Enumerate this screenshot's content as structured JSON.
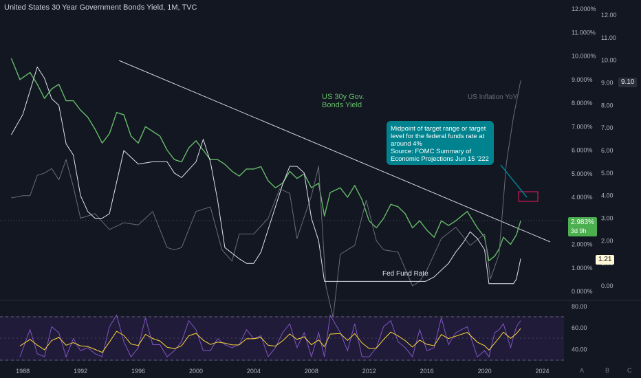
{
  "title": "United States 30 Year Government Bonds Yield, 1M, TVC",
  "main_axis": {
    "ticks": [
      "12.000%",
      "11.000%",
      "10.000%",
      "9.000%",
      "8.000%",
      "7.000%",
      "6.000%",
      "5.000%",
      "4.000%",
      "3.000%",
      "2.000%",
      "1.000%",
      "0.000%"
    ]
  },
  "second_axis": {
    "ticks": [
      "12.00",
      "11.00",
      "10.00",
      "9.00",
      "8.00",
      "7.00",
      "6.00",
      "5.00",
      "4.00",
      "3.00",
      "2.00",
      "1.00",
      "0.00"
    ]
  },
  "rsi_axis": {
    "ticks": [
      "80.00",
      "60.00",
      "40.00"
    ]
  },
  "x_axis": {
    "ticks": [
      "1988",
      "1992",
      "1996",
      "2000",
      "2004",
      "2008",
      "2012",
      "2016",
      "2020",
      "2024"
    ]
  },
  "price_badge": {
    "value": "2.983%",
    "countdown": "3d 9h",
    "color": "#4caf50"
  },
  "inflation_badge": {
    "value": "9.10"
  },
  "fed_badge": {
    "value": "1.21"
  },
  "labels": {
    "bonds": [
      "US 30y Gov.",
      "Bonds Yield"
    ],
    "inflation": "US Inflation YoY",
    "fed": "Fed Fund Rate"
  },
  "callout": {
    "lines": [
      "Midpoint of target range or target",
      "level for the federal funds rate at",
      "around 4%",
      "Source: FOMC Summary of",
      "Economic Projections Jun 15 '222"
    ],
    "color": "#00838f"
  },
  "scale_buttons": [
    "A",
    "B",
    "C"
  ],
  "chart_data": {
    "type": "line",
    "series": [
      {
        "name": "US 30y Gov. Bonds Yield",
        "color": "#66bb6a",
        "x": [
          1987.2,
          1987.8,
          1988.5,
          1989.0,
          1989.5,
          1990.0,
          1990.5,
          1991.0,
          1991.5,
          1992.0,
          1992.5,
          1993.0,
          1993.5,
          1994.0,
          1994.5,
          1995.0,
          1995.5,
          1996.0,
          1996.5,
          1997.0,
          1997.5,
          1998.0,
          1998.5,
          1999.0,
          1999.5,
          2000.0,
          2000.5,
          2001.0,
          2001.5,
          2002.0,
          2002.5,
          2003.0,
          2003.5,
          2004.0,
          2004.5,
          2005.0,
          2005.5,
          2006.0,
          2006.5,
          2007.0,
          2007.5,
          2008.0,
          2008.5,
          2008.9,
          2009.3,
          2010.0,
          2010.5,
          2011.0,
          2011.5,
          2012.0,
          2012.5,
          2013.0,
          2013.5,
          2014.0,
          2014.5,
          2015.0,
          2015.5,
          2016.0,
          2016.5,
          2017.0,
          2017.5,
          2018.0,
          2018.8,
          2019.5,
          2020.0,
          2020.3,
          2020.7,
          2021.0,
          2021.3,
          2021.8,
          2022.2,
          2022.5
        ],
        "y": [
          9.9,
          9.0,
          9.3,
          8.8,
          8.2,
          8.6,
          8.8,
          8.1,
          8.1,
          7.7,
          7.4,
          6.9,
          6.3,
          6.7,
          7.6,
          7.5,
          6.6,
          6.3,
          7.0,
          6.8,
          6.6,
          6.0,
          5.6,
          5.5,
          6.1,
          6.4,
          6.0,
          5.6,
          5.6,
          5.4,
          5.1,
          4.9,
          5.2,
          5.2,
          5.3,
          4.7,
          4.4,
          4.6,
          5.1,
          4.8,
          5.0,
          4.4,
          4.6,
          3.2,
          4.2,
          4.4,
          4.0,
          4.5,
          3.9,
          3.0,
          2.7,
          3.1,
          3.7,
          3.6,
          3.3,
          2.7,
          3.0,
          2.6,
          2.3,
          3.0,
          2.8,
          3.0,
          3.4,
          2.7,
          2.3,
          1.3,
          1.5,
          1.8,
          2.3,
          2.0,
          2.4,
          3.0
        ]
      },
      {
        "name": "US Inflation YoY",
        "x": [
          1987.2,
          1988.0,
          1988.5,
          1989.0,
          1989.5,
          1990.0,
          1990.5,
          1991.0,
          1991.5,
          1992.0,
          1993.0,
          1994.0,
          1995.0,
          1996.0,
          1997.0,
          1998.0,
          1998.5,
          1999.0,
          2000.0,
          2001.0,
          2001.8,
          2002.5,
          2003.0,
          2004.0,
          2005.0,
          2005.8,
          2006.5,
          2007.0,
          2008.0,
          2008.5,
          2009.0,
          2009.5,
          2010.0,
          2011.0,
          2011.8,
          2012.5,
          2013.0,
          2014.0,
          2015.0,
          2015.5,
          2016.0,
          2017.0,
          2018.0,
          2019.0,
          2020.0,
          2020.4,
          2021.0,
          2021.5,
          2022.0,
          2022.5
        ],
        "y": [
          3.9,
          4.0,
          4.0,
          4.9,
          5.0,
          5.2,
          4.7,
          5.6,
          4.4,
          3.0,
          3.2,
          2.5,
          2.8,
          2.7,
          3.3,
          1.7,
          1.6,
          1.7,
          3.3,
          3.5,
          1.6,
          1.1,
          2.3,
          2.3,
          3.0,
          4.3,
          4.1,
          2.1,
          4.0,
          5.3,
          0.0,
          -1.4,
          1.4,
          1.8,
          3.8,
          2.0,
          1.6,
          1.5,
          0.0,
          0.2,
          0.7,
          2.1,
          2.6,
          1.8,
          2.3,
          0.3,
          1.4,
          5.4,
          7.5,
          9.1
        ]
      },
      {
        "name": "Fed Fund Rate",
        "x": [
          1987.2,
          1988.0,
          1989.0,
          1989.5,
          1990.0,
          1990.5,
          1991.0,
          1991.5,
          1992.0,
          1992.5,
          1993.0,
          1993.5,
          1994.0,
          1995.0,
          1996.0,
          1997.0,
          1998.0,
          1998.5,
          1999.0,
          2000.0,
          2000.5,
          2001.0,
          2001.5,
          2002.0,
          2003.0,
          2003.5,
          2004.0,
          2004.5,
          2005.0,
          2006.0,
          2006.5,
          2007.0,
          2007.5,
          2008.0,
          2008.5,
          2008.9,
          2009.5,
          2012.0,
          2015.9,
          2016.5,
          2017.0,
          2017.5,
          2018.0,
          2018.5,
          2019.0,
          2019.5,
          2020.0,
          2020.3,
          2021.0,
          2022.0,
          2022.2,
          2022.5
        ],
        "y": [
          6.7,
          7.6,
          9.7,
          9.2,
          8.3,
          8.0,
          6.3,
          5.8,
          4.0,
          3.3,
          3.0,
          3.0,
          3.2,
          6.0,
          5.4,
          5.5,
          5.5,
          5.0,
          4.8,
          5.5,
          6.5,
          5.5,
          3.8,
          1.7,
          1.2,
          1.0,
          1.0,
          1.5,
          2.5,
          4.5,
          5.3,
          5.3,
          5.0,
          3.0,
          2.0,
          0.2,
          0.2,
          0.2,
          0.2,
          0.4,
          0.7,
          1.0,
          1.5,
          1.9,
          2.4,
          2.1,
          1.6,
          0.1,
          0.1,
          0.1,
          0.3,
          1.21
        ]
      }
    ],
    "xlim": [
      1986.8,
      2025.5
    ],
    "ylim": [
      0,
      12
    ],
    "rsi_ylim": [
      30,
      80
    ]
  }
}
